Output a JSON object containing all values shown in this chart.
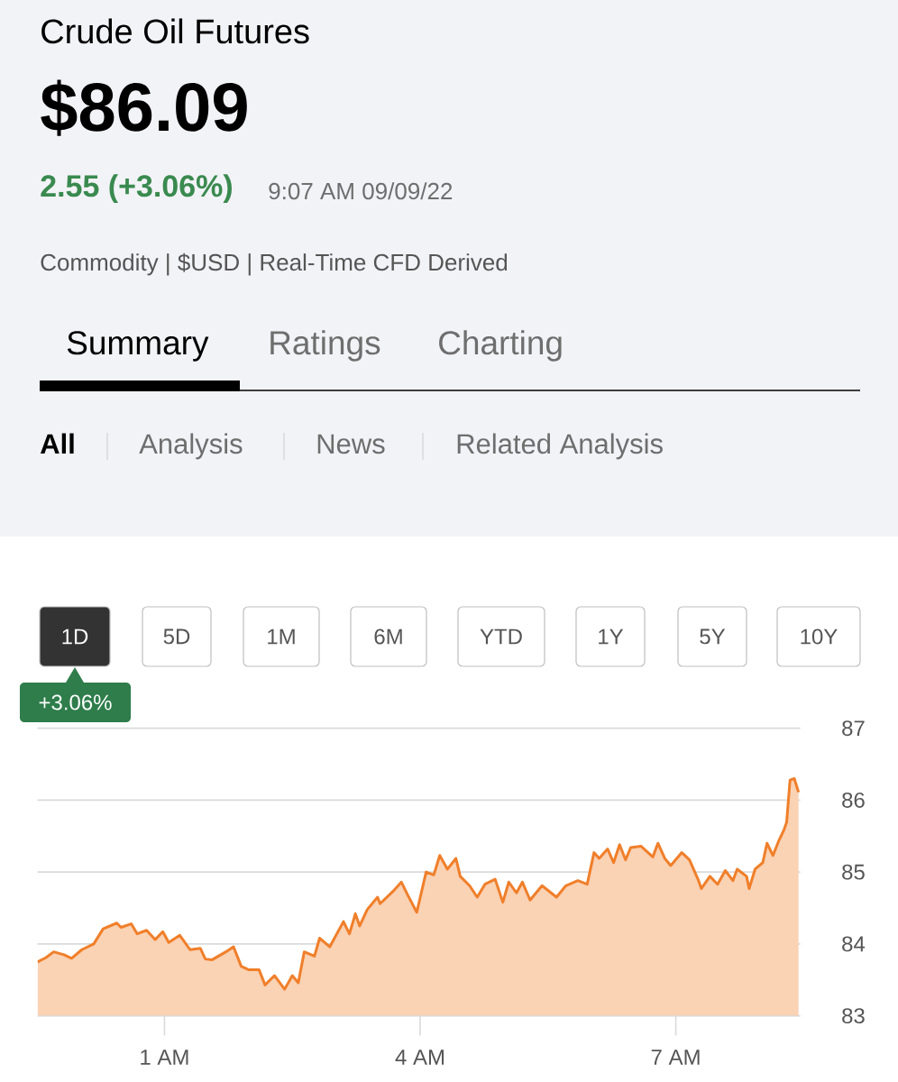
{
  "chart_data": {
    "type": "area",
    "title": "Crude Oil Futures",
    "annotations": [
      "$86.09",
      "2.55 (+3.06%)",
      "9:07 AM 09/09/22",
      "Commodity | $USD | Real-Time CFD Derived",
      "Summary",
      "Ratings",
      "Charting",
      "All",
      "Analysis",
      "News",
      "Related Analysis",
      "1D",
      "5D",
      "1M",
      "6M",
      "YTD",
      "1Y",
      "5Y",
      "10Y",
      "+3.06%"
    ],
    "x": [
      -0.49,
      -0.39,
      -0.3,
      -0.18,
      -0.09,
      0.03,
      0.17,
      0.28,
      0.44,
      0.49,
      0.61,
      0.68,
      0.79,
      0.89,
      0.98,
      1.05,
      1.18,
      1.3,
      1.42,
      1.48,
      1.56,
      1.72,
      1.81,
      1.9,
      1.99,
      2.11,
      2.18,
      2.29,
      2.41,
      2.5,
      2.57,
      2.64,
      2.76,
      2.82,
      2.94,
      3.1,
      3.17,
      3.24,
      3.29,
      3.38,
      3.5,
      3.53,
      3.68,
      3.78,
      3.85,
      3.96,
      4.07,
      4.16,
      4.23,
      4.32,
      4.42,
      4.47,
      4.58,
      4.67,
      4.76,
      4.88,
      4.97,
      5.04,
      5.13,
      5.2,
      5.29,
      5.43,
      5.6,
      5.71,
      5.85,
      5.96,
      6.04,
      6.1,
      6.2,
      6.27,
      6.34,
      6.41,
      6.47,
      6.59,
      6.73,
      6.79,
      6.87,
      6.94,
      7.07,
      7.16,
      7.26,
      7.3,
      7.4,
      7.49,
      7.58,
      7.67,
      7.72,
      7.83,
      7.86,
      7.93,
      8.02,
      8.07,
      8.14,
      8.21,
      8.27,
      8.3,
      8.34,
      8.39,
      8.44
    ],
    "series": [
      {
        "color": "#f07f2a",
        "values": [
          83.75,
          83.81,
          83.89,
          83.85,
          83.8,
          83.92,
          84.0,
          84.21,
          84.29,
          84.23,
          84.28,
          84.14,
          84.19,
          84.06,
          84.17,
          84.02,
          84.12,
          83.92,
          83.94,
          83.79,
          83.78,
          83.89,
          83.96,
          83.69,
          83.64,
          83.64,
          83.43,
          83.56,
          83.37,
          83.56,
          83.46,
          83.89,
          83.83,
          84.08,
          83.96,
          84.31,
          84.14,
          84.42,
          84.25,
          84.48,
          84.65,
          84.56,
          84.73,
          84.86,
          84.69,
          84.44,
          85.0,
          84.96,
          85.23,
          85.04,
          85.19,
          84.94,
          84.81,
          84.65,
          84.83,
          84.9,
          84.58,
          84.86,
          84.71,
          84.86,
          84.61,
          84.81,
          84.65,
          84.81,
          84.88,
          84.83,
          85.27,
          85.19,
          85.32,
          85.13,
          85.38,
          85.17,
          85.34,
          85.36,
          85.21,
          85.4,
          85.19,
          85.09,
          85.27,
          85.17,
          84.9,
          84.77,
          84.94,
          84.83,
          85.02,
          84.88,
          85.04,
          84.94,
          84.77,
          85.04,
          85.13,
          85.4,
          85.23,
          85.44,
          85.59,
          85.69,
          86.28,
          86.3,
          86.11
        ]
      }
    ],
    "xlim": [
      -0.49,
      8.46
    ],
    "xticks": [
      {
        "value": 1,
        "label": "1 AM"
      },
      {
        "value": 4,
        "label": "4 AM"
      },
      {
        "value": 7,
        "label": "7 AM"
      }
    ],
    "ylim": [
      83,
      87
    ],
    "yticks": [
      83,
      84,
      85,
      86,
      87
    ],
    "grid": "y"
  }
}
